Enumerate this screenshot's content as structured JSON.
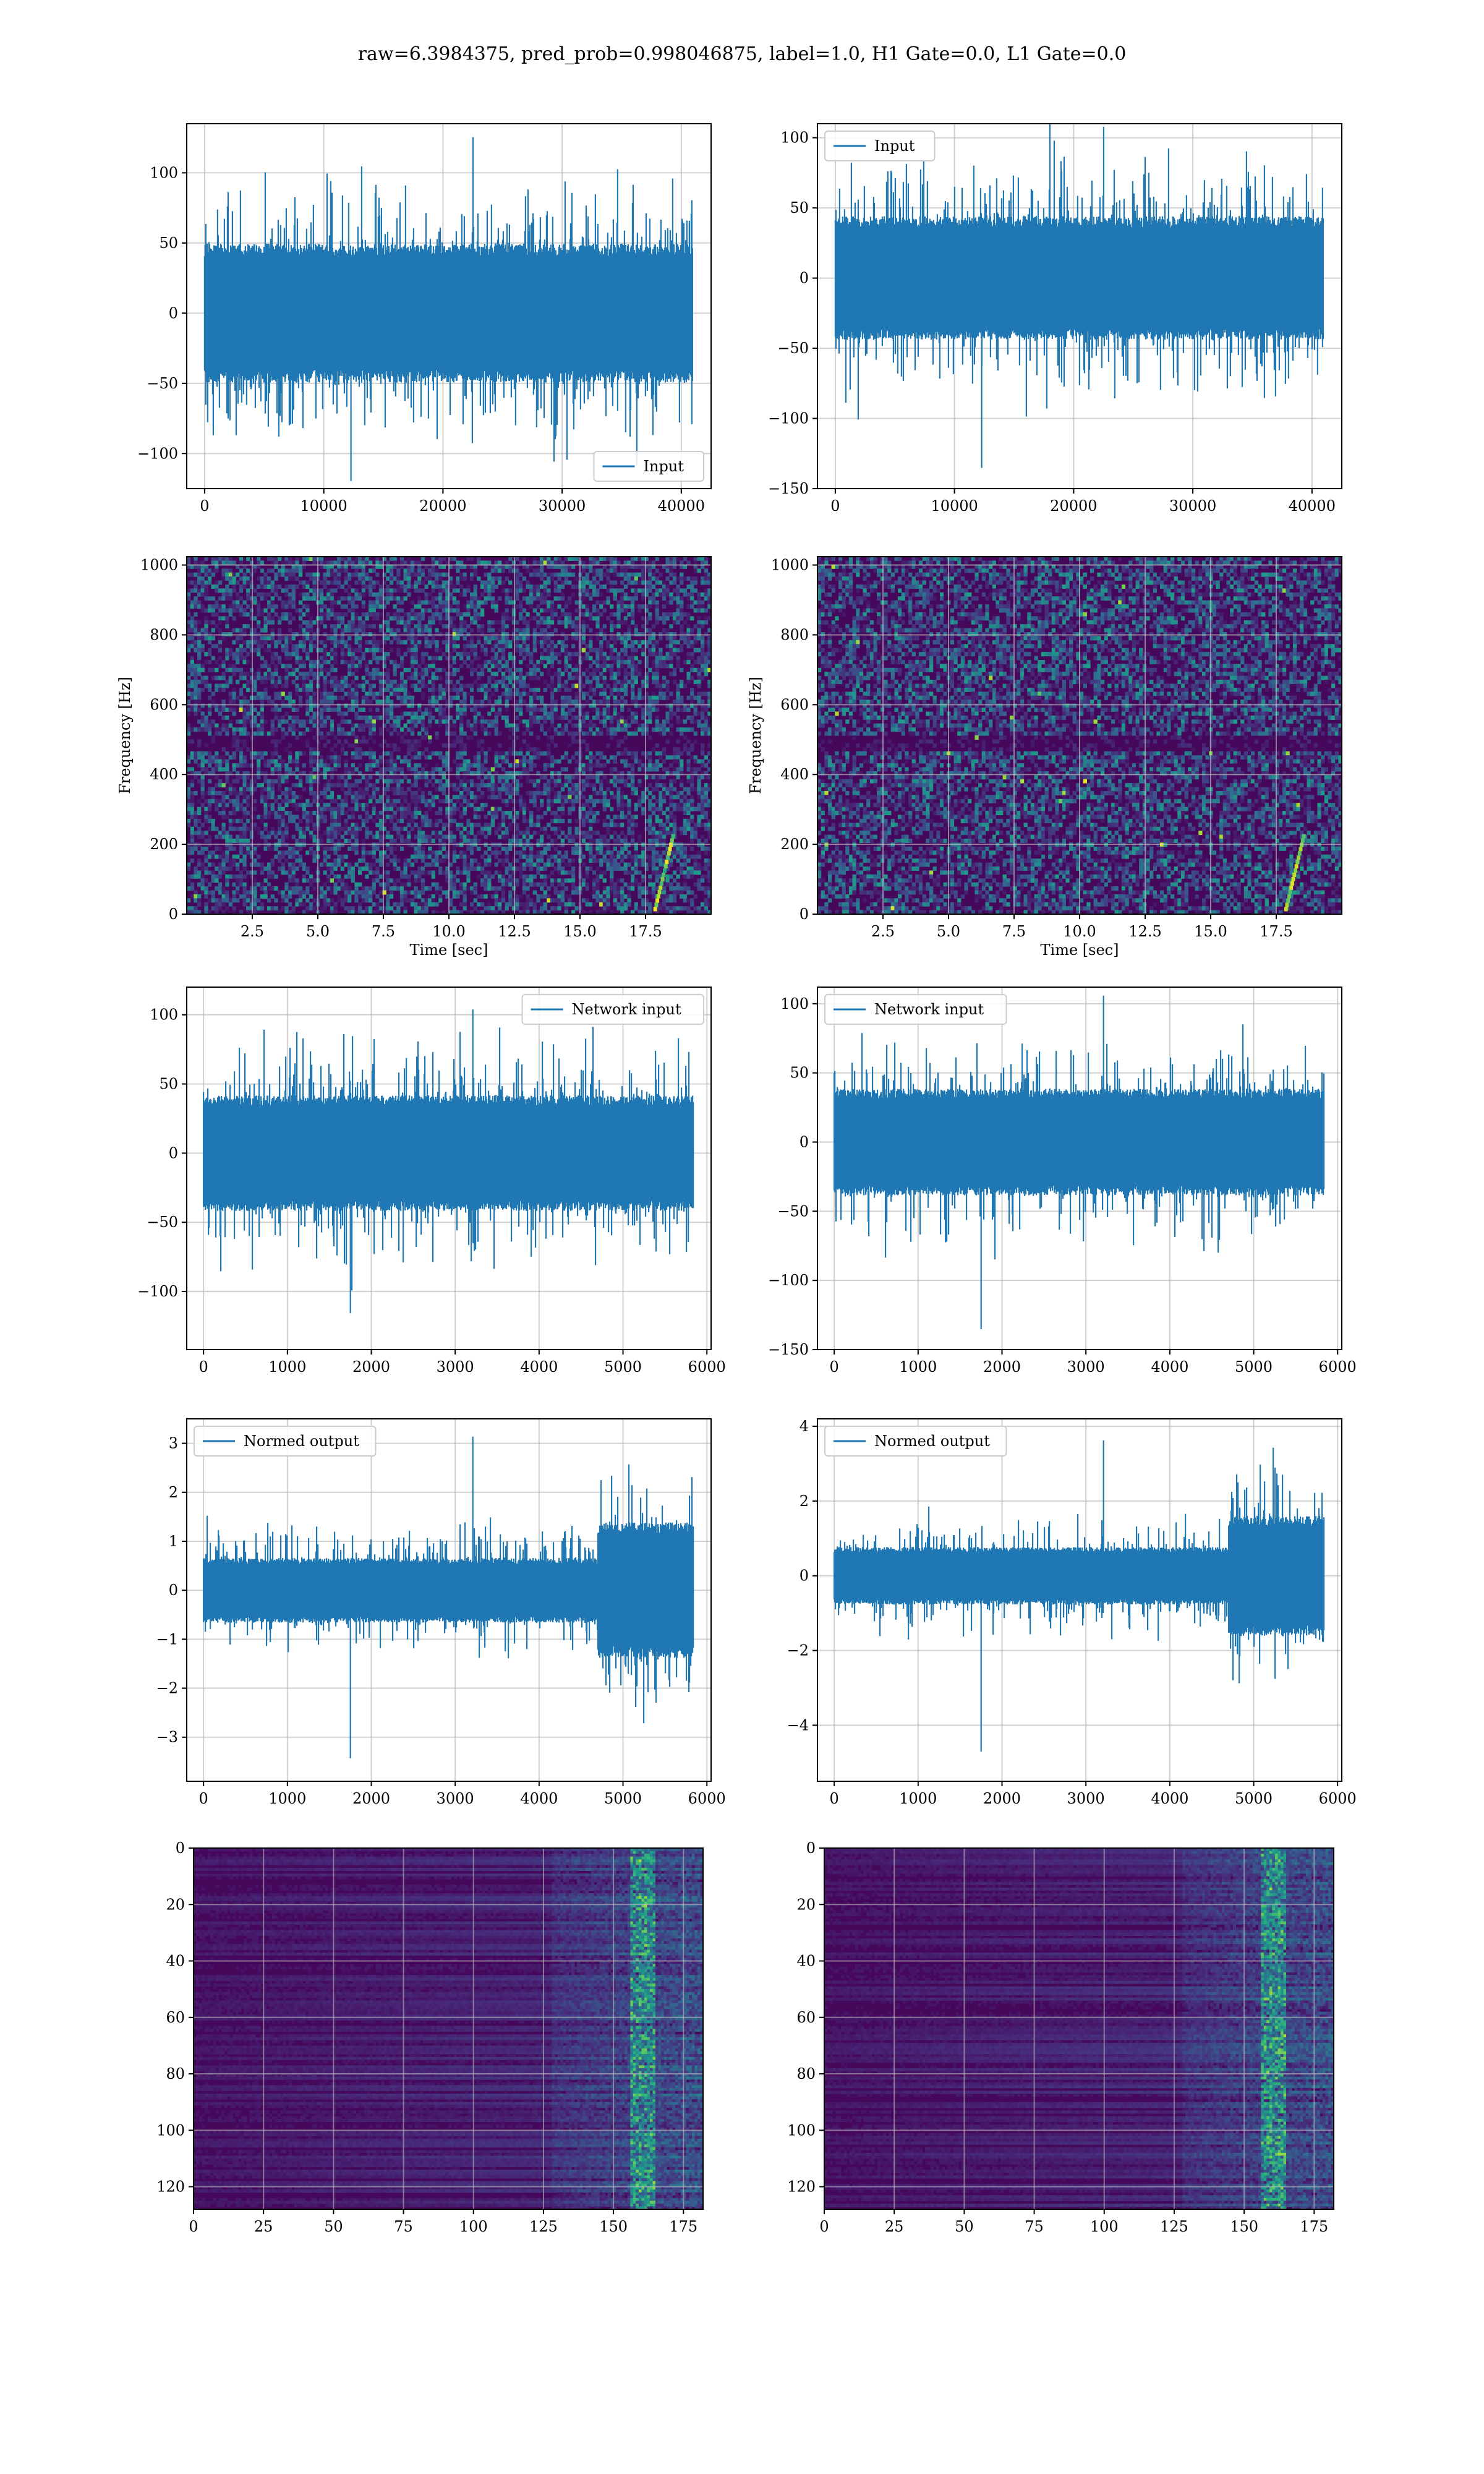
{
  "figure": {
    "suptitle": "raw=6.3984375, pred_prob=0.998046875, label=1.0, H1 Gate=0.0, L1 Gate=0.0",
    "line_color": "#1f77b4",
    "grid_color": "#b0b0b0",
    "spec_colormap": "viridis"
  },
  "chart_data": [
    {
      "id": "input-h1",
      "type": "line",
      "legend": [
        "Input"
      ],
      "legend_loc": "lower-right",
      "xlim": [
        -1500,
        42500
      ],
      "ylim": [
        -125,
        135
      ],
      "xticks": [
        0,
        10000,
        20000,
        30000,
        40000
      ],
      "yticks": [
        -100,
        -50,
        0,
        50,
        100
      ],
      "series": [
        {
          "name": "Input",
          "x_range": [
            0,
            40960
          ],
          "core_amplitude": 45,
          "peak_max": 128,
          "peak_min": -122
        }
      ]
    },
    {
      "id": "input-l1",
      "type": "line",
      "legend": [
        "Input"
      ],
      "legend_loc": "upper-left",
      "xlim": [
        -1500,
        42500
      ],
      "ylim": [
        -150,
        110
      ],
      "xticks": [
        0,
        10000,
        20000,
        30000,
        40000
      ],
      "yticks": [
        -150,
        -100,
        -50,
        0,
        50,
        100
      ],
      "series": [
        {
          "name": "Input",
          "x_range": [
            0,
            40960
          ],
          "core_amplitude": 40,
          "peak_max": 110,
          "peak_min": -138
        }
      ]
    },
    {
      "id": "spec-h1",
      "type": "heatmap",
      "xlabel": "Time [sec]",
      "ylabel": "Frequency [Hz]",
      "xlim": [
        0,
        20
      ],
      "ylim": [
        0,
        1024
      ],
      "xticks": [
        "2.5",
        "5.0",
        "7.5",
        "10.0",
        "12.5",
        "15.0",
        "17.5"
      ],
      "yticks": [
        0,
        200,
        400,
        600,
        800,
        1000
      ],
      "grid": true
    },
    {
      "id": "spec-l1",
      "type": "heatmap",
      "xlabel": "Time [sec]",
      "ylabel": "Frequency [Hz]",
      "xlim": [
        0,
        20
      ],
      "ylim": [
        0,
        1024
      ],
      "xticks": [
        "2.5",
        "5.0",
        "7.5",
        "10.0",
        "12.5",
        "15.0",
        "17.5"
      ],
      "yticks": [
        0,
        200,
        400,
        600,
        800,
        1000
      ],
      "grid": true
    },
    {
      "id": "net-h1",
      "type": "line",
      "legend": [
        "Network input"
      ],
      "legend_loc": "upper-right",
      "xlim": [
        -200,
        6050
      ],
      "ylim": [
        -142,
        120
      ],
      "xticks": [
        0,
        1000,
        2000,
        3000,
        4000,
        5000,
        6000
      ],
      "yticks": [
        -100,
        -50,
        0,
        50,
        100
      ],
      "series": [
        {
          "name": "Network input",
          "x_range": [
            0,
            5840
          ],
          "core_amplitude": 38,
          "peak_max": 106,
          "peak_min": -118
        }
      ]
    },
    {
      "id": "net-l1",
      "type": "line",
      "legend": [
        "Network input"
      ],
      "legend_loc": "upper-left",
      "xlim": [
        -200,
        6050
      ],
      "ylim": [
        -150,
        112
      ],
      "xticks": [
        0,
        1000,
        2000,
        3000,
        4000,
        5000,
        6000
      ],
      "yticks": [
        -150,
        -100,
        -50,
        0,
        50,
        100
      ],
      "series": [
        {
          "name": "Network input",
          "x_range": [
            0,
            5840
          ],
          "core_amplitude": 35,
          "peak_max": 108,
          "peak_min": -138
        }
      ]
    },
    {
      "id": "norm-h1",
      "type": "line",
      "legend": [
        "Normed output"
      ],
      "legend_loc": "upper-left",
      "xlim": [
        -200,
        6050
      ],
      "ylim": [
        -3.9,
        3.5
      ],
      "xticks": [
        0,
        1000,
        2000,
        3000,
        4000,
        5000,
        6000
      ],
      "yticks": [
        -3,
        -2,
        -1,
        0,
        1,
        2,
        3
      ],
      "series": [
        {
          "name": "Normed output",
          "x_range": [
            0,
            5840
          ],
          "core_amplitude": 0.6,
          "burst_start": 4700,
          "peak_max": 3.2,
          "peak_min": -3.5
        }
      ]
    },
    {
      "id": "norm-l1",
      "type": "line",
      "legend": [
        "Normed output"
      ],
      "legend_loc": "upper-left",
      "xlim": [
        -200,
        6050
      ],
      "ylim": [
        -5.5,
        4.2
      ],
      "xticks": [
        0,
        1000,
        2000,
        3000,
        4000,
        5000,
        6000
      ],
      "yticks": [
        -4,
        -2,
        0,
        2,
        4
      ],
      "series": [
        {
          "name": "Normed output",
          "x_range": [
            0,
            5840
          ],
          "core_amplitude": 0.7,
          "burst_start": 4700,
          "peak_max": 3.7,
          "peak_min": -4.8
        }
      ]
    },
    {
      "id": "feat-h1",
      "type": "heatmap",
      "xlim": [
        0,
        182
      ],
      "ylim": [
        128,
        0
      ],
      "xticks": [
        0,
        25,
        50,
        75,
        100,
        125,
        150,
        175
      ],
      "yticks": [
        0,
        20,
        40,
        60,
        80,
        100,
        120
      ],
      "grid": true
    },
    {
      "id": "feat-l1",
      "type": "heatmap",
      "xlim": [
        0,
        182
      ],
      "ylim": [
        128,
        0
      ],
      "xticks": [
        0,
        25,
        50,
        75,
        100,
        125,
        150,
        175
      ],
      "yticks": [
        0,
        20,
        40,
        60,
        80,
        100,
        120
      ],
      "grid": true
    }
  ]
}
